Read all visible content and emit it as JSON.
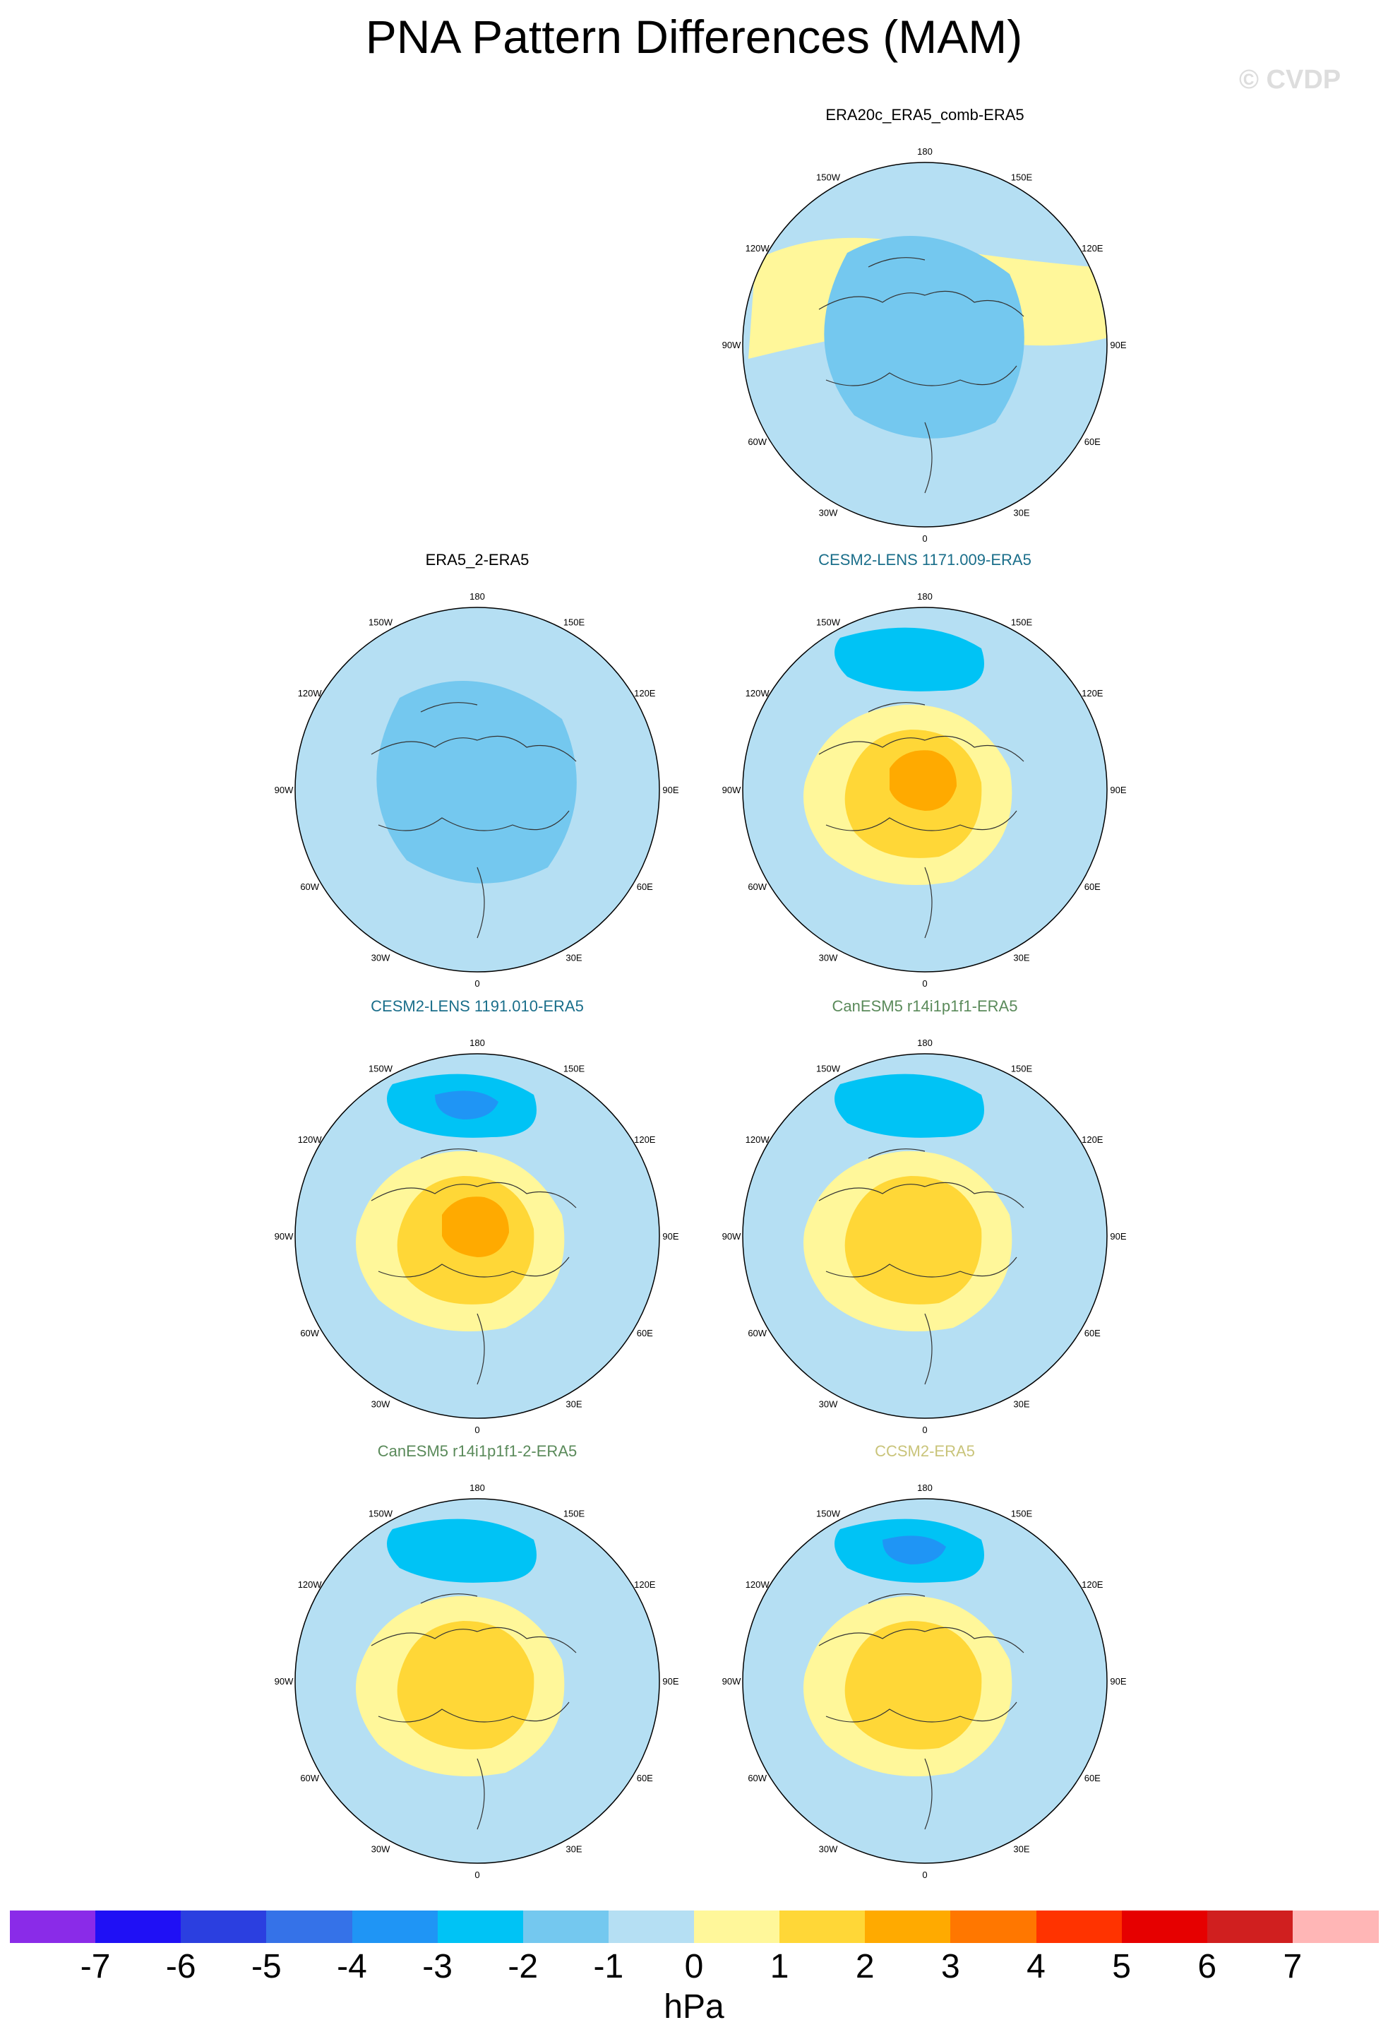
{
  "title": "PNA Pattern Differences (MAM)",
  "credit": "© CVDP",
  "colors": {
    "ocean_lines": "#333333",
    "levels": [
      "#8a2be8",
      "#1f10f5",
      "#2b3fe0",
      "#3572e8",
      "#1f95f5",
      "#00c3f5",
      "#74c8ef",
      "#b5dff3",
      "#fff79a",
      "#ffd737",
      "#ffaa00",
      "#ff7700",
      "#ff3300",
      "#e60000",
      "#d01f1f",
      "#ffb6b6"
    ]
  },
  "lon_labels": [
    "180",
    "150E",
    "120E",
    "90E",
    "60E",
    "30E",
    "0",
    "30W",
    "60W",
    "90W",
    "120W",
    "150W"
  ],
  "panels": [
    {
      "id": "era20c",
      "title": "ERA20c_ERA5_comb-ERA5",
      "title_color": "#000000",
      "anomalies": [
        {
          "level": 1,
          "shape": "belt"
        },
        {
          "level": -1,
          "shape": "arctic"
        }
      ]
    },
    {
      "id": "era5_2",
      "title": "ERA5_2-ERA5",
      "title_color": "#000000",
      "anomalies": [
        {
          "level": -1,
          "shape": "arctic"
        }
      ]
    },
    {
      "id": "cesm1171",
      "title": "CESM2-LENS 1171.009-ERA5",
      "title_color": "#1a6e8a",
      "anomalies": [
        {
          "level": -2,
          "shape": "pacific"
        },
        {
          "level": 1,
          "shape": "center"
        },
        {
          "level": 2,
          "shape": "center_in"
        },
        {
          "level": 3,
          "shape": "center_core"
        }
      ]
    },
    {
      "id": "cesm1191",
      "title": "CESM2-LENS 1191.010-ERA5",
      "title_color": "#1a6e8a",
      "anomalies": [
        {
          "level": -2,
          "shape": "pacific"
        },
        {
          "level": -3,
          "shape": "pacific_core"
        },
        {
          "level": 1,
          "shape": "center"
        },
        {
          "level": 2,
          "shape": "center_in"
        },
        {
          "level": 3,
          "shape": "center_core"
        }
      ]
    },
    {
      "id": "canesm1",
      "title": "CanESM5 r14i1p1f1-ERA5",
      "title_color": "#5a8a5a",
      "anomalies": [
        {
          "level": -2,
          "shape": "pacific"
        },
        {
          "level": 1,
          "shape": "center"
        },
        {
          "level": 2,
          "shape": "center_in"
        }
      ]
    },
    {
      "id": "canesm2",
      "title": "CanESM5 r14i1p1f1-2-ERA5",
      "title_color": "#5a8a5a",
      "anomalies": [
        {
          "level": -2,
          "shape": "pacific"
        },
        {
          "level": 1,
          "shape": "center"
        },
        {
          "level": 2,
          "shape": "center_in"
        }
      ]
    },
    {
      "id": "ccsm2",
      "title": "CCSM2-ERA5",
      "title_color": "#c9c47a",
      "anomalies": [
        {
          "level": -2,
          "shape": "pacific"
        },
        {
          "level": -3,
          "shape": "pacific_core"
        },
        {
          "level": 1,
          "shape": "center"
        },
        {
          "level": 2,
          "shape": "center_in"
        }
      ]
    }
  ],
  "colorbar": {
    "labels": [
      "-7",
      "-6",
      "-5",
      "-4",
      "-3",
      "-2",
      "-1",
      "0",
      "1",
      "2",
      "3",
      "4",
      "5",
      "6",
      "7"
    ],
    "unit": "hPa"
  }
}
